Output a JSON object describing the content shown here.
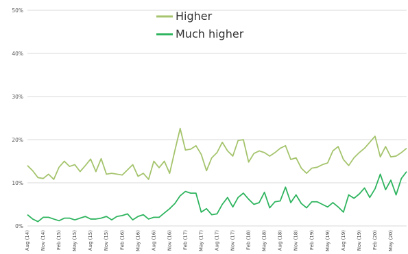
{
  "chart_data": {
    "type": "line",
    "title": "",
    "xlabel": "",
    "ylabel": "",
    "ylim": [
      0,
      50
    ],
    "yticks": [
      "0%",
      "10%",
      "20%",
      "30%",
      "40%",
      "50%"
    ],
    "grid": true,
    "legend_position": "top-center",
    "categories": [
      "Aug (14)",
      "",
      "",
      "Nov (14)",
      "",
      "",
      "Feb (15)",
      "",
      "",
      "May (15)",
      "",
      "",
      "Aug (15)",
      "",
      "",
      "Nov (15)",
      "",
      "",
      "Feb (16)",
      "",
      "",
      "May (16)",
      "",
      "",
      "Aug (16)",
      "",
      "",
      "Nov (16)",
      "",
      "",
      "Feb (17)",
      "",
      "",
      "May (17)",
      "",
      "",
      "Aug (17)",
      "",
      "",
      "Nov (17)",
      "",
      "",
      "Feb (18)",
      "",
      "",
      "May (18)",
      "",
      "",
      "Aug (18)",
      "",
      "",
      "Nov (18)",
      "",
      "",
      "Feb (19)",
      "",
      "",
      "May (19)",
      "",
      "",
      "Aug (19)",
      "",
      "",
      "Nov (19)",
      "",
      "",
      "Feb (20)",
      "",
      "",
      "May (20)",
      "",
      "",
      ""
    ],
    "series": [
      {
        "name": "Higher",
        "color": "#a5c46d",
        "values": [
          14.0,
          12.8,
          11.2,
          11.0,
          12.0,
          10.8,
          13.6,
          15.0,
          13.8,
          14.2,
          12.6,
          14.0,
          15.5,
          12.6,
          15.6,
          12.0,
          12.2,
          12.0,
          11.8,
          13.0,
          14.2,
          11.5,
          12.2,
          10.8,
          15.0,
          13.5,
          15.0,
          12.2,
          17.5,
          22.6,
          17.6,
          17.8,
          18.6,
          16.6,
          12.8,
          15.8,
          17.0,
          19.4,
          17.4,
          16.2,
          19.8,
          20.0,
          14.8,
          16.8,
          17.4,
          17.0,
          16.2,
          17.0,
          18.0,
          18.6,
          15.4,
          15.8,
          13.4,
          12.2,
          13.4,
          13.6,
          14.2,
          14.6,
          17.4,
          18.4,
          15.4,
          14.0,
          15.8,
          17.0,
          18.0,
          19.4,
          20.8,
          16.0,
          18.4,
          16.0,
          16.2,
          17.0,
          18.0
        ]
      },
      {
        "name": "Much higher",
        "color": "#2eb45e",
        "values": [
          2.6,
          1.6,
          1.0,
          2.0,
          2.0,
          1.6,
          1.2,
          1.8,
          1.8,
          1.4,
          1.8,
          2.2,
          1.6,
          1.6,
          1.8,
          2.2,
          1.4,
          2.2,
          2.4,
          2.8,
          1.4,
          2.2,
          2.6,
          1.6,
          2.0,
          2.0,
          3.0,
          4.0,
          5.2,
          7.0,
          8.0,
          7.6,
          7.6,
          3.2,
          4.0,
          2.6,
          2.8,
          5.0,
          6.6,
          4.4,
          6.6,
          7.6,
          6.2,
          5.0,
          5.4,
          7.8,
          4.2,
          5.6,
          5.8,
          9.0,
          5.4,
          7.2,
          5.2,
          4.2,
          5.6,
          5.6,
          5.0,
          4.4,
          5.4,
          4.4,
          3.2,
          7.2,
          6.4,
          7.4,
          8.8,
          6.6,
          8.6,
          12.0,
          8.4,
          10.6,
          7.2,
          11.0,
          12.6
        ]
      }
    ]
  }
}
